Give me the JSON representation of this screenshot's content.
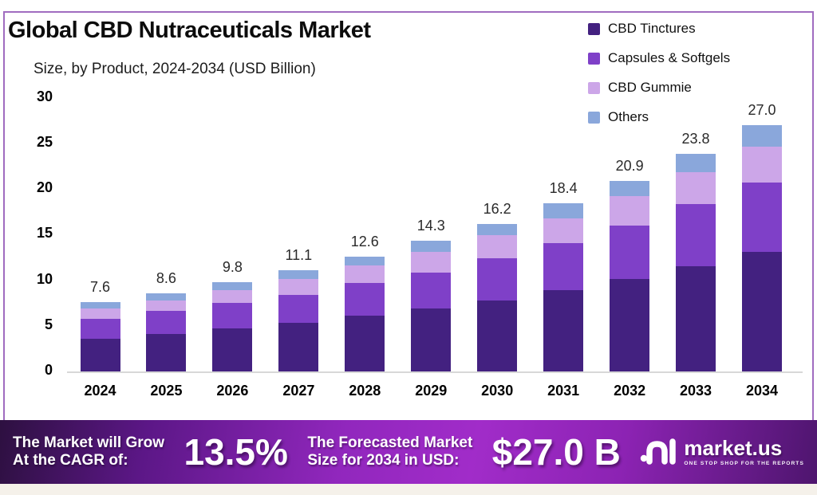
{
  "header": {
    "title": "Global CBD Nutraceuticals Market",
    "subtitle": "Size, by Product, 2024-2034 (USD Billion)"
  },
  "chart_data": {
    "type": "bar",
    "stacked": true,
    "title": "Global CBD Nutraceuticals Market",
    "subtitle": "Size, by Product, 2024-2034 (USD Billion)",
    "unit": "USD Billion",
    "categories": [
      "2024",
      "2025",
      "2026",
      "2027",
      "2028",
      "2029",
      "2030",
      "2031",
      "2032",
      "2033",
      "2034"
    ],
    "series": [
      {
        "name": "CBD Tinctures",
        "color": "#432180",
        "values": [
          3.6,
          4.1,
          4.7,
          5.3,
          6.1,
          6.9,
          7.8,
          8.9,
          10.1,
          11.5,
          13.1
        ]
      },
      {
        "name": "Capsules & Softgels",
        "color": "#7f40c8",
        "values": [
          2.2,
          2.5,
          2.8,
          3.1,
          3.6,
          3.9,
          4.6,
          5.2,
          5.9,
          6.8,
          7.6
        ]
      },
      {
        "name": "CBD Gummie",
        "color": "#cca6e8",
        "values": [
          1.1,
          1.2,
          1.4,
          1.7,
          1.9,
          2.3,
          2.5,
          2.7,
          3.2,
          3.5,
          3.9
        ]
      },
      {
        "name": "Others",
        "color": "#8aa7db",
        "values": [
          0.7,
          0.8,
          0.9,
          1.0,
          1.0,
          1.2,
          1.3,
          1.6,
          1.7,
          2.0,
          2.4
        ]
      }
    ],
    "totals": [
      "7.6",
      "8.6",
      "9.8",
      "11.1",
      "12.6",
      "14.3",
      "16.2",
      "18.4",
      "20.9",
      "23.8",
      "27.0"
    ],
    "y_ticks": [
      0,
      5,
      10,
      15,
      20,
      25,
      30
    ],
    "ylim": [
      0,
      30
    ],
    "grid": false,
    "legend_position": "top-right"
  },
  "banner": {
    "grow_line1": "The Market will Grow",
    "grow_line2": "At the CAGR of:",
    "cagr_value": "13.5%",
    "forecast_line1": "The Forecasted Market",
    "forecast_line2": "Size for 2034 in USD:",
    "forecast_value": "$27.0 B",
    "logo_text": "market.us",
    "logo_tagline": "ONE STOP SHOP FOR THE REPORTS"
  },
  "colors": {
    "frame_border": "#a06cc0",
    "banner_left": "#2d1040",
    "banner_center": "#a12cc9",
    "banner_right": "#4e156e",
    "baseline": "#d8d8d8"
  }
}
